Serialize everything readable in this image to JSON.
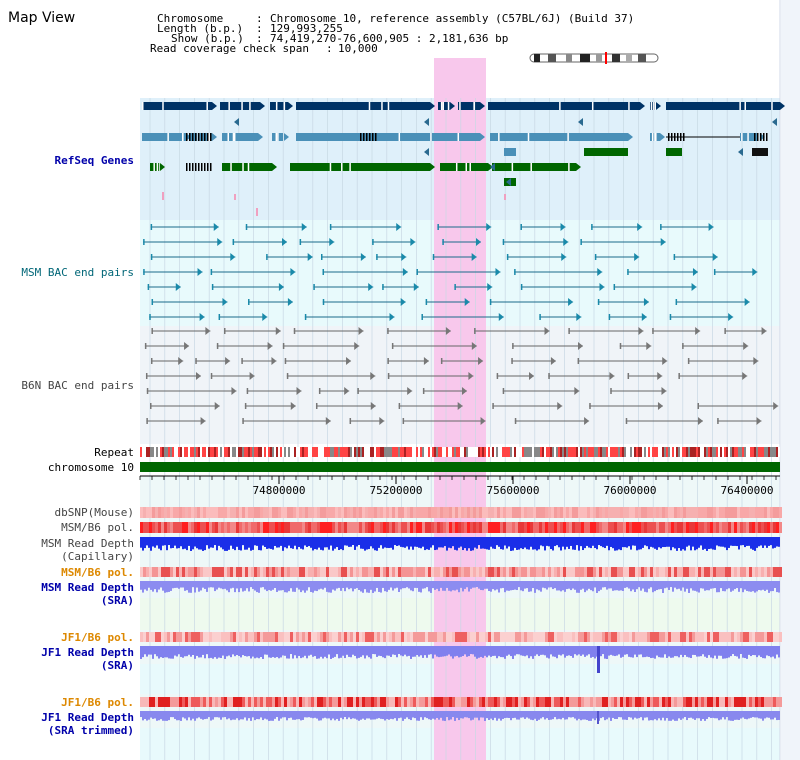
{
  "page_title": "Map View",
  "info": {
    "chromosome_key": "Chromosome",
    "chromosome_val": "Chromosome 10, reference assembly (C57BL/6J) (Build 37)",
    "length_key": "Length (b.p.)",
    "length_val": "129,993,255",
    "show_key": "Show (b.p.)",
    "show_val": "74,419,270-76,600,905 : 2,181,636 bp",
    "coverage_key": "Read coverage check span",
    "coverage_val": "10,000"
  },
  "tracks": {
    "refseq": "RefSeq Genes",
    "msm_bac": "MSM BAC end pairs",
    "b6n_bac": "B6N BAC end pairs",
    "repeat": "Repeat",
    "chromosome": "chromosome 10",
    "dbsnp": "dbSNP(Mouse)",
    "msm_b6_pol": "MSM/B6 pol.",
    "msm_depth_cap": "MSM Read Depth",
    "msm_depth_cap2": "(Capillary)",
    "msm_b6_pol2": "MSM/B6 pol.",
    "msm_depth_sra": "MSM Read Depth",
    "msm_depth_sra2": "(SRA)",
    "jf1_b6_pol": "JF1/B6 pol.",
    "jf1_depth_sra": "JF1 Read Depth",
    "jf1_depth_sra2": "(SRA)",
    "jf1_b6_pol2": "JF1/B6 pol.",
    "jf1_depth_trim": "JF1 Read Depth",
    "jf1_depth_trim2": "(SRA trimmed)"
  },
  "axis": {
    "ticks": [
      "74800000",
      "75200000",
      "75600000",
      "76000000",
      "76400000"
    ]
  },
  "colors": {
    "label_blue": "#0000aa",
    "label_teal": "#006677",
    "label_orange": "#dd8800",
    "label_gray": "#444444",
    "highlight": "#f8c8ec",
    "refseq_bg": "#dff0fa",
    "msm_bg": "#e8fafc",
    "b6n_bg": "#f0f4f8",
    "chromosome": "#006600"
  }
}
